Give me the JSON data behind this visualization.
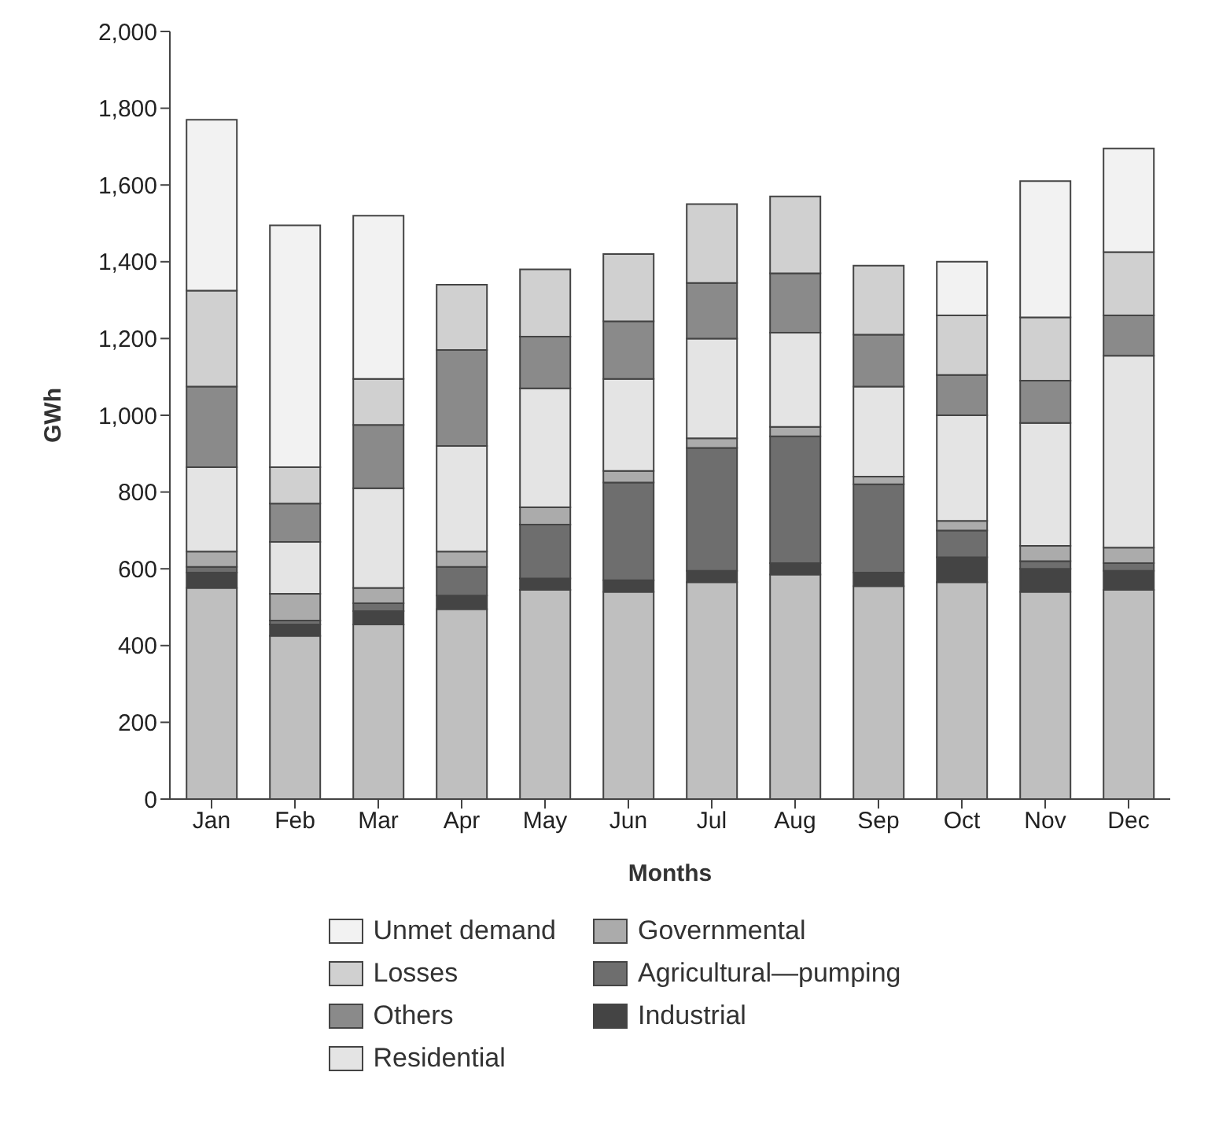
{
  "chart_data": {
    "type": "bar",
    "stacked": true,
    "xlabel": "Months",
    "ylabel": "GWh",
    "categories": [
      "Jan",
      "Feb",
      "Mar",
      "Apr",
      "May",
      "Jun",
      "Jul",
      "Aug",
      "Sep",
      "Oct",
      "Nov",
      "Dec"
    ],
    "ylim": [
      0,
      2000
    ],
    "yticks": [
      0,
      200,
      400,
      600,
      800,
      {
        "value": 1000,
        "label": "1,000"
      },
      {
        "value": 1200,
        "label": "1,200"
      },
      {
        "value": 1400,
        "label": "1,400"
      },
      {
        "value": 1600,
        "label": "1,600"
      },
      {
        "value": 1800,
        "label": "1,800"
      },
      {
        "value": 2000,
        "label": "2,000"
      }
    ],
    "legend": "bottom",
    "series": [
      {
        "color": "#bfbfbf",
        "values": [
          550,
          425,
          455,
          495,
          545,
          540,
          565,
          585,
          555,
          565,
          540,
          545
        ]
      },
      {
        "name": "Industrial",
        "color": "#444444",
        "values": [
          40,
          30,
          35,
          35,
          30,
          30,
          30,
          30,
          35,
          65,
          60,
          50
        ]
      },
      {
        "name": "Agricultural—pumping",
        "color": "#6e6e6e",
        "values": [
          15,
          10,
          20,
          75,
          140,
          255,
          320,
          330,
          230,
          70,
          20,
          20
        ]
      },
      {
        "name": "Governmental",
        "color": "#ababab",
        "values": [
          40,
          70,
          40,
          40,
          45,
          30,
          25,
          25,
          20,
          25,
          40,
          40
        ]
      },
      {
        "name": "Residential",
        "color": "#e4e4e4",
        "values": [
          220,
          135,
          260,
          275,
          310,
          240,
          260,
          245,
          235,
          275,
          320,
          500
        ]
      },
      {
        "name": "Others",
        "color": "#8a8a8a",
        "values": [
          210,
          100,
          165,
          250,
          135,
          150,
          145,
          155,
          135,
          105,
          110,
          105
        ]
      },
      {
        "name": "Losses",
        "color": "#d0d0d0",
        "values": [
          250,
          95,
          120,
          170,
          175,
          175,
          205,
          200,
          180,
          155,
          165,
          165
        ]
      },
      {
        "name": "Unmet demand",
        "color": "#f2f2f2",
        "values": [
          445,
          630,
          425,
          null,
          null,
          null,
          null,
          null,
          null,
          140,
          355,
          270
        ]
      }
    ]
  }
}
